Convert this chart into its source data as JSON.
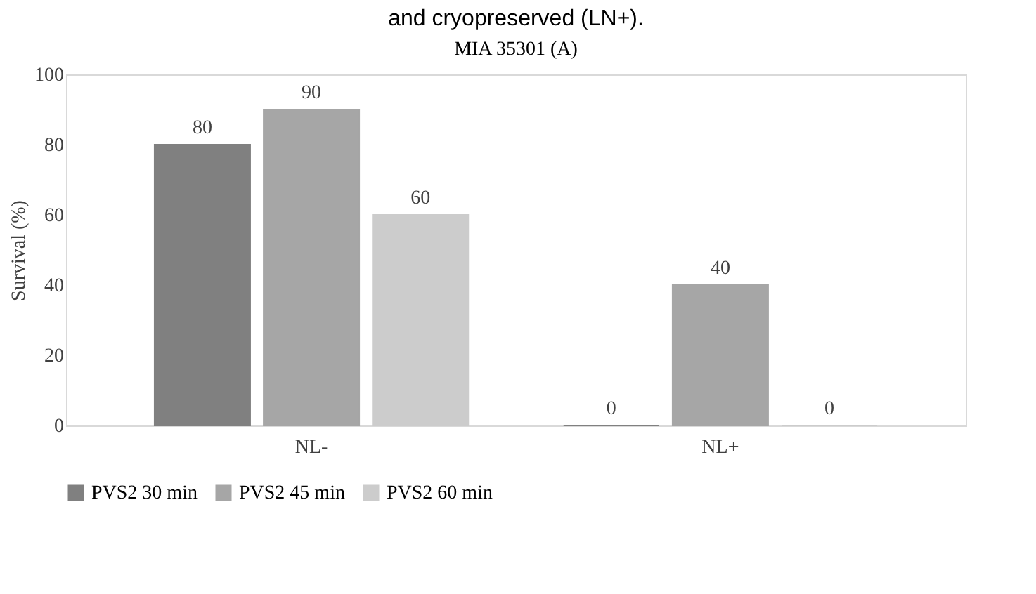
{
  "chart_data": {
    "type": "bar",
    "title": "MIA 35301 (A)",
    "ylabel": "Survival (%)",
    "categories": [
      "NL-",
      "NL+"
    ],
    "series": [
      {
        "name": "PVS2 30 min",
        "color": "#808080",
        "values": [
          80,
          0
        ]
      },
      {
        "name": "PVS2 45 min",
        "color": "#a6a6a6",
        "values": [
          90,
          40
        ]
      },
      {
        "name": "PVS2 60 min",
        "color": "#cccccc",
        "values": [
          60,
          0
        ]
      }
    ],
    "ylim": [
      0,
      100
    ],
    "yticks": [
      0,
      20,
      40,
      60,
      80,
      100
    ],
    "grid": false,
    "legend": "bottom",
    "data_labels": true,
    "annotations": [
      "and cryopreserved (LN+)."
    ]
  }
}
